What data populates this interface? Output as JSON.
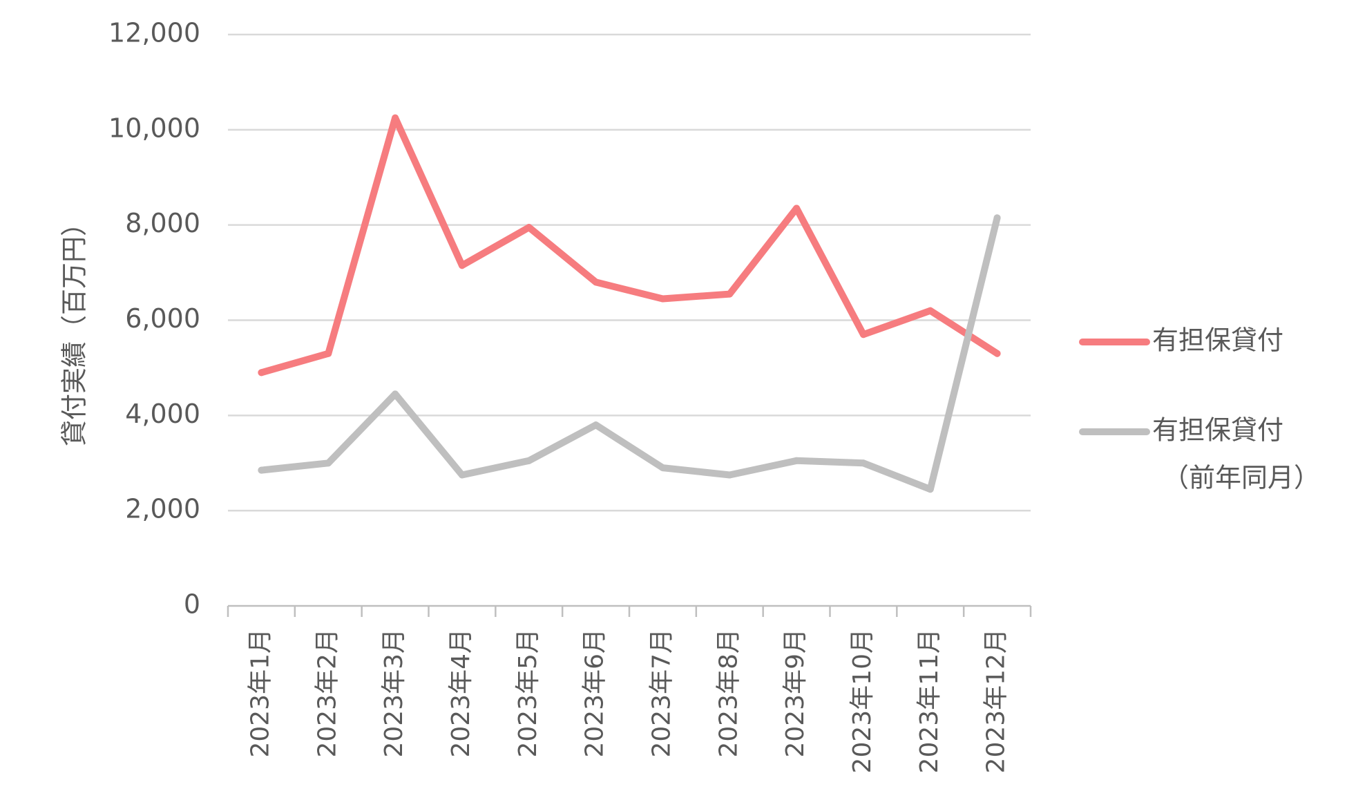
{
  "chart_data": {
    "type": "line",
    "title": "",
    "xlabel": "",
    "ylabel": "貸付実績（百万円）",
    "ylim": [
      0,
      12000
    ],
    "yticks": [
      0,
      2000,
      4000,
      6000,
      8000,
      10000,
      12000
    ],
    "ytick_labels": [
      "0",
      "2,000",
      "4,000",
      "6,000",
      "8,000",
      "10,000",
      "12,000"
    ],
    "categories": [
      "2023年1月",
      "2023年2月",
      "2023年3月",
      "2023年4月",
      "2023年5月",
      "2023年6月",
      "2023年7月",
      "2023年8月",
      "2023年9月",
      "2023年10月",
      "2023年11月",
      "2023年12月"
    ],
    "grid": true,
    "legend_position": "right",
    "series": [
      {
        "name": "有担保貸付",
        "legend_lines": [
          "有担保貸付"
        ],
        "color": "#f67c7f",
        "values": [
          4900,
          5300,
          10250,
          7150,
          7950,
          6800,
          6450,
          6550,
          8350,
          5700,
          6200,
          5300
        ]
      },
      {
        "name": "有担保貸付（前年同月）",
        "legend_lines": [
          "有担保貸付",
          "（前年同月）"
        ],
        "color": "#bfbfbf",
        "values": [
          2850,
          3000,
          4450,
          2750,
          3050,
          3800,
          2900,
          2750,
          3050,
          3000,
          2450,
          8150
        ]
      }
    ],
    "gridline_color": "#d9d9d9",
    "axis_color": "#bfbfbf"
  }
}
